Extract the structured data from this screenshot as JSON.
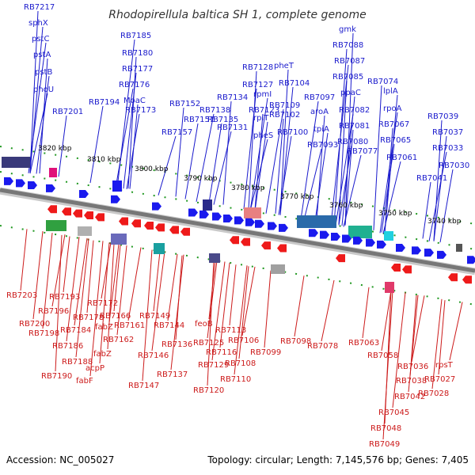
{
  "title": "Rhodopirellula baltica SH 1, complete genome",
  "footer": {
    "accession": "Accession: NC_005027",
    "summary": "Topology: circular; Length: 7,145,576 bp; Genes: 7,405"
  },
  "colors": {
    "forward_strand": "#1a1aee",
    "reverse_strand": "#ee1a1a",
    "backbone": "#888888",
    "tick": "#229922",
    "label_top": "#1a1acc",
    "label_bottom": "#cc1a1a"
  },
  "ticks": [
    "3820 kbp",
    "3810 kbp",
    "3800 kbp",
    "3790 kbp",
    "3780 kbp",
    "3770 kbp",
    "3760 kbp",
    "3750 kbp",
    "3740 kbp"
  ],
  "labels_top": [
    "RB7217",
    "sphX",
    "pstC",
    "pstA",
    "pstB",
    "phoU",
    "RB7201",
    "RB7194",
    "RB7185",
    "RB7180",
    "RB7177",
    "RB7176",
    "MoaC",
    "RB7173",
    "RB7157",
    "RB7152",
    "RB7151",
    "RB7138",
    "RB7134",
    "RB7135",
    "RB7131",
    "RB7128",
    "RB7127",
    "rpmI",
    "RB7123",
    "rplT",
    "pheS",
    "pheT",
    "RB7104",
    "RB7109",
    "RB7102",
    "RB7100",
    "RB7097",
    "aroA",
    "tpiA",
    "RB7093",
    "gmk",
    "RB7088",
    "RB7087",
    "RB7085",
    "ppaC",
    "RB7082",
    "RB7081",
    "RB7080",
    "RB7077",
    "RB7074",
    "lplA",
    "rpoA",
    "RB7067",
    "RB7065",
    "RB7061",
    "RB7039",
    "RB7037",
    "RB7033",
    "RB7041",
    "RB7030"
  ],
  "labels_bottom": [
    "RB7203",
    "RB7200",
    "RB7196",
    "RB7193",
    "RB7198",
    "RB7184",
    "RB7178",
    "RB7172",
    "RB7186",
    "RB7166",
    "fabZ",
    "RB7188",
    "fabZ",
    "RB7162",
    "RB7161",
    "RB7190",
    "acpP",
    "fabF",
    "RB7149",
    "RB7144",
    "RB7146",
    "RB7136",
    "RB7147",
    "RB7137",
    "feoB",
    "RB7125",
    "RB7129",
    "RB7113",
    "RB7116",
    "RB7106",
    "RB7120",
    "RB7108",
    "RB7110",
    "RB7099",
    "RB7098",
    "RB7078",
    "RB7063",
    "RB7058",
    "RB7036",
    "RB7038",
    "RB7042",
    "RB7045",
    "RB7048",
    "RB7049",
    "rpsT",
    "RB7027",
    "RB7028"
  ]
}
